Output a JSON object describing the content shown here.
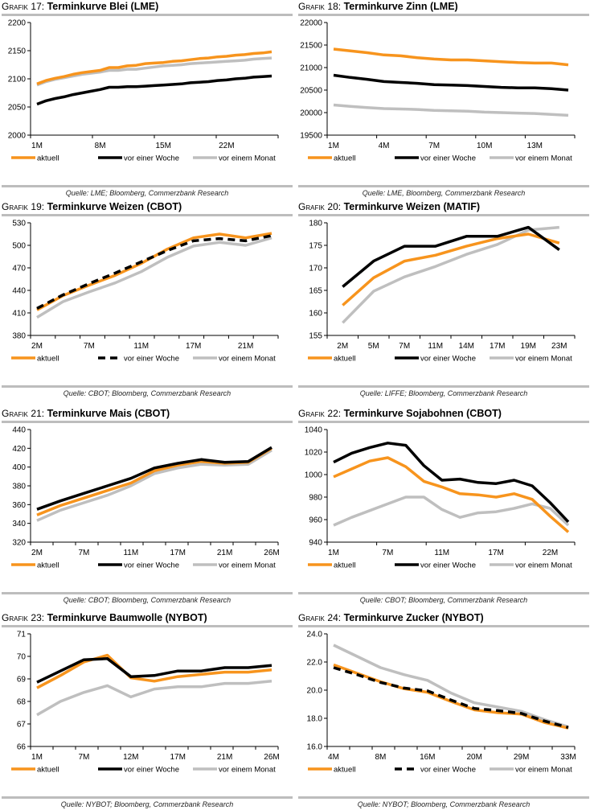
{
  "legend_labels": [
    "aktuell",
    "vor einer Woche",
    "vor einem Monat"
  ],
  "colors": {
    "aktuell": "#f7941d",
    "woche": "#000000",
    "monat": "#bfbfbf",
    "rule": "#bdbdbd"
  },
  "chart_data": [
    {
      "id": "g17",
      "type": "line",
      "prefix": "Grafik",
      "number": "17:",
      "title": "Terminkurve Blei (LME)",
      "source": "Quelle: LME; Bloomberg, Commerzbank Research",
      "ylim": [
        2000,
        2200
      ],
      "yticks": [
        2000,
        2050,
        2100,
        2150,
        2200
      ],
      "ytick_labels": [
        "2000",
        "2050",
        "2100",
        "2150",
        "2200"
      ],
      "n_points": 27,
      "xtick_positions": [
        0,
        7,
        14,
        21
      ],
      "xtick_labels": [
        "1M",
        "8M",
        "15M",
        "22M"
      ],
      "minor_ticks": false,
      "series": [
        {
          "name": "aktuell",
          "style": "solid",
          "color": "#f7941d",
          "values": [
            2091,
            2097,
            2101,
            2104,
            2108,
            2111,
            2113,
            2115,
            2120,
            2120,
            2123,
            2124,
            2127,
            2128,
            2129,
            2131,
            2132,
            2134,
            2136,
            2137,
            2139,
            2140,
            2142,
            2143,
            2145,
            2146,
            2148
          ]
        },
        {
          "name": "vor einer Woche",
          "style": "solid",
          "color": "#000000",
          "values": [
            2055,
            2061,
            2065,
            2068,
            2072,
            2075,
            2078,
            2081,
            2085,
            2085,
            2086,
            2086,
            2087,
            2088,
            2089,
            2090,
            2091,
            2093,
            2094,
            2095,
            2097,
            2098,
            2100,
            2101,
            2103,
            2104,
            2105
          ]
        },
        {
          "name": "vor einem Monat",
          "style": "solid",
          "color": "#bfbfbf",
          "values": [
            2089,
            2095,
            2099,
            2102,
            2105,
            2108,
            2110,
            2112,
            2115,
            2115,
            2117,
            2117,
            2119,
            2121,
            2123,
            2124,
            2125,
            2127,
            2128,
            2129,
            2130,
            2131,
            2132,
            2133,
            2135,
            2136,
            2137
          ]
        }
      ]
    },
    {
      "id": "g18",
      "type": "line",
      "prefix": "Grafik",
      "number": "18:",
      "title": "Terminkurve Zinn (LME)",
      "source": "Quelle: LME, Bloomberg, Commerzbank Research",
      "ylim": [
        19500,
        22000
      ],
      "yticks": [
        19500,
        20000,
        20500,
        21000,
        21500,
        22000
      ],
      "ytick_labels": [
        "19500",
        "20000",
        "20500",
        "21000",
        "21500",
        "22000"
      ],
      "n_points": 15,
      "xtick_positions": [
        0,
        3,
        6,
        9,
        12
      ],
      "xtick_labels": [
        "1M",
        "4M",
        "7M",
        "10M",
        "13M"
      ],
      "minor_ticks": false,
      "series": [
        {
          "name": "aktuell",
          "style": "solid",
          "color": "#f7941d",
          "values": [
            21410,
            21370,
            21330,
            21280,
            21260,
            21220,
            21190,
            21170,
            21170,
            21150,
            21130,
            21110,
            21100,
            21100,
            21060
          ]
        },
        {
          "name": "vor einer Woche",
          "style": "solid",
          "color": "#000000",
          "values": [
            20830,
            20780,
            20740,
            20690,
            20670,
            20650,
            20620,
            20610,
            20600,
            20580,
            20560,
            20550,
            20550,
            20530,
            20500
          ]
        },
        {
          "name": "vor einem Monat",
          "style": "solid",
          "color": "#bfbfbf",
          "values": [
            20170,
            20140,
            20110,
            20090,
            20080,
            20070,
            20050,
            20040,
            20030,
            20010,
            20000,
            19990,
            19980,
            19960,
            19940
          ]
        }
      ]
    },
    {
      "id": "g19",
      "type": "line",
      "prefix": "Grafik",
      "number": "19:",
      "title": "Terminkurve Weizen (CBOT)",
      "source": "Quelle: CBOT; Bloomberg, Commerzbank Research",
      "ylim": [
        380,
        530
      ],
      "yticks": [
        380,
        410,
        440,
        470,
        500,
        530
      ],
      "ytick_labels": [
        "380",
        "410",
        "440",
        "470",
        "500",
        "530"
      ],
      "n_points": 10,
      "xtick_positions": [
        0,
        2,
        4,
        6,
        8
      ],
      "xtick_labels": [
        "2M",
        "7M",
        "11M",
        "17M",
        "21M"
      ],
      "minor_ticks": true,
      "series": [
        {
          "name": "aktuell",
          "style": "solid",
          "color": "#f7941d",
          "values": [
            414,
            433,
            447,
            460,
            476,
            495,
            510,
            515,
            510,
            516
          ]
        },
        {
          "name": "vor einer Woche",
          "style": "dashed",
          "color": "#000000",
          "values": [
            416,
            434,
            449,
            463,
            478,
            493,
            506,
            509,
            506,
            513
          ]
        },
        {
          "name": "vor einem Monat",
          "style": "solid",
          "color": "#bfbfbf",
          "values": [
            404,
            425,
            438,
            450,
            465,
            484,
            499,
            504,
            500,
            510
          ]
        }
      ]
    },
    {
      "id": "g20",
      "type": "line",
      "prefix": "Grafik",
      "number": "20:",
      "title": "Terminkurve Weizen (MATIF)",
      "source": "Quelle: LIFFE; Bloomberg, Commerzbank Research",
      "ylim": [
        155,
        180
      ],
      "yticks": [
        155,
        160,
        165,
        170,
        175,
        180
      ],
      "ytick_labels": [
        "155",
        "160",
        "165",
        "170",
        "175",
        "180"
      ],
      "n_points": 8,
      "xtick_positions": [
        0,
        1,
        2,
        3,
        4,
        5,
        6,
        7
      ],
      "xtick_labels": [
        "2M",
        "5M",
        "7M",
        "11M",
        "14M",
        "17M",
        "19M",
        "23M"
      ],
      "minor_ticks": false,
      "category_axis": true,
      "series": [
        {
          "name": "aktuell",
          "style": "solid",
          "color": "#f7941d",
          "values": [
            161.7,
            167.8,
            171.5,
            172.8,
            174.8,
            176.5,
            177.5,
            175.5
          ]
        },
        {
          "name": "vor einer Woche",
          "style": "solid",
          "color": "#000000",
          "values": [
            165.8,
            171.5,
            174.8,
            174.8,
            177.0,
            177.0,
            179.0,
            174.0
          ]
        },
        {
          "name": "vor einem Monat",
          "style": "solid",
          "color": "#bfbfbf",
          "values": [
            157.8,
            164.8,
            168.0,
            170.3,
            173.0,
            175.2,
            178.4,
            179.0
          ]
        }
      ]
    },
    {
      "id": "g21",
      "type": "line",
      "prefix": "Grafik",
      "number": "21:",
      "title": "Terminkurve Mais (CBOT)",
      "source": "Quelle: CBOT; Bloomberg, Commerzbank Research",
      "ylim": [
        320,
        440
      ],
      "yticks": [
        320,
        340,
        360,
        380,
        400,
        420,
        440
      ],
      "ytick_labels": [
        "320",
        "340",
        "360",
        "380",
        "400",
        "420",
        "440"
      ],
      "n_points": 12,
      "xtick_positions": [
        0,
        2,
        4,
        6,
        8,
        10
      ],
      "xtick_labels": [
        "2M",
        "7M",
        "11M",
        "17M",
        "21M",
        "26M"
      ],
      "minor_ticks": true,
      "series": [
        {
          "name": "aktuell",
          "style": "solid",
          "color": "#f7941d",
          "values": [
            349,
            359,
            367,
            375,
            383,
            396,
            402,
            406,
            404,
            405,
            420,
            420
          ]
        },
        {
          "name": "vor einer Woche",
          "style": "solid",
          "color": "#000000",
          "values": [
            355,
            364,
            372,
            380,
            388,
            399,
            404,
            408,
            405,
            406,
            421,
            421
          ]
        },
        {
          "name": "vor einem Monat",
          "style": "solid",
          "color": "#bfbfbf",
          "values": [
            343,
            354,
            362,
            370,
            380,
            393,
            399,
            403,
            402,
            403,
            418,
            418
          ]
        }
      ],
      "n_points_override": 11
    },
    {
      "id": "g22",
      "type": "line",
      "prefix": "Grafik",
      "number": "22:",
      "title": "Terminkurve Sojabohnen (CBOT)",
      "source": "Quelle: CBOT; Bloomberg, Commerzbank Research",
      "ylim": [
        940,
        1040
      ],
      "yticks": [
        940,
        960,
        980,
        1000,
        1020,
        1040
      ],
      "ytick_labels": [
        "940",
        "960",
        "980",
        "1000",
        "1020",
        "1040"
      ],
      "n_points": 14,
      "xtick_positions": [
        0,
        3,
        6,
        9,
        12
      ],
      "xtick_labels": [
        "1M",
        "7M",
        "11M",
        "17M",
        "22M"
      ],
      "minor_ticks": false,
      "series": [
        {
          "name": "aktuell",
          "style": "solid",
          "color": "#f7941d",
          "values": [
            998,
            1005,
            1012,
            1015,
            1007,
            994,
            989,
            983,
            982,
            980,
            983,
            978,
            963,
            949
          ]
        },
        {
          "name": "vor einer Woche",
          "style": "solid",
          "color": "#000000",
          "values": [
            1011,
            1019,
            1024,
            1028,
            1026,
            1008,
            995,
            996,
            993,
            992,
            995,
            990,
            975,
            958
          ]
        },
        {
          "name": "vor einem Monat",
          "style": "solid",
          "color": "#bfbfbf",
          "values": [
            955,
            962,
            968,
            974,
            980,
            980,
            969,
            962,
            966,
            967,
            970,
            974,
            970,
            955
          ]
        }
      ]
    },
    {
      "id": "g23",
      "type": "line",
      "prefix": "Grafik",
      "number": "23:",
      "title": "Terminkurve Baumwolle (NYBOT)",
      "source": "Quelle: NYBOT; Bloomberg, Commerzbank Research",
      "ylim": [
        66,
        71
      ],
      "yticks": [
        66,
        67,
        68,
        69,
        70,
        71
      ],
      "ytick_labels": [
        "66",
        "67",
        "68",
        "69",
        "70",
        "71"
      ],
      "n_points": 11,
      "xtick_positions": [
        0,
        2,
        4,
        6,
        8,
        10
      ],
      "xtick_labels": [
        "1M",
        "7M",
        "12M",
        "17M",
        "21M",
        "26M"
      ],
      "minor_ticks": true,
      "series": [
        {
          "name": "aktuell",
          "style": "solid",
          "color": "#f7941d",
          "values": [
            68.6,
            69.15,
            69.75,
            70.05,
            69.05,
            68.9,
            69.1,
            69.2,
            69.3,
            69.3,
            69.4
          ]
        },
        {
          "name": "vor einer Woche",
          "style": "solid",
          "color": "#000000",
          "values": [
            68.85,
            69.35,
            69.85,
            69.9,
            69.1,
            69.15,
            69.35,
            69.35,
            69.5,
            69.5,
            69.6
          ]
        },
        {
          "name": "vor einem Monat",
          "style": "solid",
          "color": "#bfbfbf",
          "values": [
            67.4,
            68.0,
            68.4,
            68.7,
            68.2,
            68.55,
            68.65,
            68.65,
            68.8,
            68.8,
            68.9
          ]
        }
      ]
    },
    {
      "id": "g24",
      "type": "line",
      "prefix": "Grafik",
      "number": "24:",
      "title": "Terminkurve Zucker (NYBOT)",
      "source": "Quelle: NYBOT; Bloomberg, Commerzbank Research",
      "ylim": [
        16.0,
        24.0
      ],
      "yticks": [
        16,
        18,
        20,
        22,
        24
      ],
      "ytick_labels": [
        "16.0",
        "18.0",
        "20.0",
        "22.0",
        "24.0"
      ],
      "n_points": 11,
      "xtick_positions": [
        0,
        2,
        4,
        6,
        8,
        10
      ],
      "xtick_labels": [
        "4M",
        "8M",
        "16M",
        "20M",
        "29M",
        "33M"
      ],
      "minor_ticks": true,
      "series": [
        {
          "name": "aktuell",
          "style": "solid",
          "color": "#f7941d",
          "values": [
            21.8,
            21.2,
            20.6,
            20.1,
            19.85,
            19.2,
            18.6,
            18.4,
            18.3,
            17.7,
            17.3
          ]
        },
        {
          "name": "vor einer Woche",
          "style": "dashed",
          "color": "#000000",
          "values": [
            21.6,
            21.1,
            20.55,
            20.15,
            19.95,
            19.3,
            18.7,
            18.55,
            18.35,
            17.8,
            17.35
          ]
        },
        {
          "name": "vor einem Monat",
          "style": "solid",
          "color": "#bfbfbf",
          "values": [
            23.2,
            22.4,
            21.6,
            21.1,
            20.7,
            19.8,
            19.1,
            18.8,
            18.5,
            17.9,
            17.4
          ]
        }
      ]
    }
  ]
}
